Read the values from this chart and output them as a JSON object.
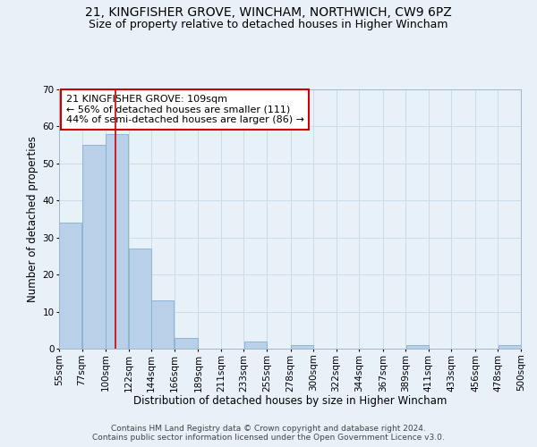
{
  "title": "21, KINGFISHER GROVE, WINCHAM, NORTHWICH, CW9 6PZ",
  "subtitle": "Size of property relative to detached houses in Higher Wincham",
  "xlabel": "Distribution of detached houses by size in Higher Wincham",
  "ylabel": "Number of detached properties",
  "footer_line1": "Contains HM Land Registry data © Crown copyright and database right 2024.",
  "footer_line2": "Contains public sector information licensed under the Open Government Licence v3.0.",
  "annotation_line1": "21 KINGFISHER GROVE: 109sqm",
  "annotation_line2": "← 56% of detached houses are smaller (111)",
  "annotation_line3": "44% of semi-detached houses are larger (86) →",
  "bar_edges": [
    55,
    77,
    100,
    122,
    144,
    166,
    189,
    211,
    233,
    255,
    278,
    300,
    322,
    344,
    367,
    389,
    411,
    433,
    456,
    478,
    500
  ],
  "bar_heights": [
    34,
    55,
    58,
    27,
    13,
    3,
    0,
    0,
    2,
    0,
    1,
    0,
    0,
    0,
    0,
    1,
    0,
    0,
    0,
    1
  ],
  "tick_labels": [
    "55sqm",
    "77sqm",
    "100sqm",
    "122sqm",
    "144sqm",
    "166sqm",
    "189sqm",
    "211sqm",
    "233sqm",
    "255sqm",
    "278sqm",
    "300sqm",
    "322sqm",
    "344sqm",
    "367sqm",
    "389sqm",
    "411sqm",
    "433sqm",
    "456sqm",
    "478sqm",
    "500sqm"
  ],
  "bar_color": "#b8d0e8",
  "bar_edgecolor": "#85aed0",
  "vline_x": 109,
  "vline_color": "#cc0000",
  "ylim": [
    0,
    70
  ],
  "yticks": [
    0,
    10,
    20,
    30,
    40,
    50,
    60,
    70
  ],
  "grid_color": "#c8dcea",
  "bg_color": "#e8f0f8",
  "annotation_box_edgecolor": "#cc0000",
  "title_fontsize": 10,
  "subtitle_fontsize": 9,
  "axis_label_fontsize": 8.5,
  "tick_fontsize": 7.5,
  "annotation_fontsize": 8,
  "footer_fontsize": 6.5
}
